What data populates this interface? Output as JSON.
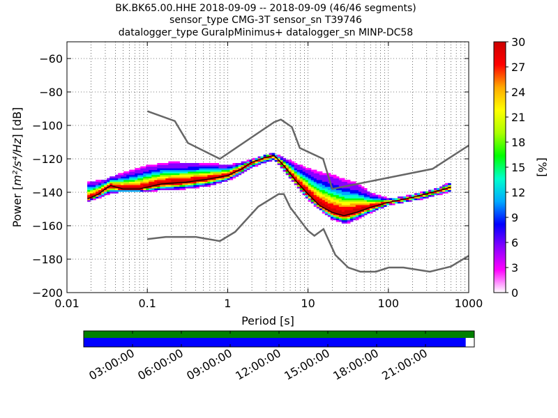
{
  "header": {
    "title_lines": [
      "BK.BK65.00.HHE   2018-09-09 -- 2018-09-09  (46/46 segments)",
      "sensor_type CMG-3T sensor_sn T39746",
      "datalogger_type GuralpMinimus+ datalogger_sn MINP-DC58"
    ]
  },
  "chart_data": {
    "type": "heatmap",
    "subtype": "probabilistic-power-spectral-density",
    "xlabel": "Period [s]",
    "ylabel": "Power [m²/s⁴/Hz] [dB]",
    "ylabel_parts": {
      "prefix": "Power [",
      "unit_tex": "m²/s⁴/Hz",
      "suffix": "] [dB]"
    },
    "x_scale": "log",
    "xlim": [
      0.01,
      1000
    ],
    "ylim": [
      -200,
      -50
    ],
    "x_ticks": [
      0.01,
      0.1,
      1,
      10,
      100,
      1000
    ],
    "x_tick_labels": [
      "0.01",
      "0.1",
      "1",
      "10",
      "100",
      "1000"
    ],
    "y_ticks": [
      -200,
      -180,
      -160,
      -140,
      -120,
      -100,
      -80,
      -60
    ],
    "y_tick_labels": [
      "−200",
      "−180",
      "−160",
      "−140",
      "−120",
      "−100",
      "−80",
      "−60"
    ],
    "grid": "dotted",
    "colorbar": {
      "label": "[%]",
      "range": [
        0,
        30
      ],
      "ticks": [
        0,
        3,
        6,
        9,
        12,
        15,
        18,
        21,
        24,
        27,
        30
      ],
      "tick_labels": [
        "0",
        "3",
        "6",
        "9",
        "12",
        "15",
        "18",
        "21",
        "24",
        "27",
        "30"
      ],
      "colormap": [
        "#ffffff",
        "#ff00ff",
        "#8800ff",
        "#0000ff",
        "#00aaff",
        "#00ffcc",
        "#00ff00",
        "#aaff00",
        "#ffff00",
        "#ffaa00",
        "#ff0000",
        "#cc0000"
      ]
    },
    "noise_models": {
      "color": "#666666",
      "high_noise_model": [
        [
          0.1,
          -91.5
        ],
        [
          0.22,
          -97.4
        ],
        [
          0.32,
          -110.5
        ],
        [
          0.8,
          -120
        ],
        [
          3.8,
          -98
        ],
        [
          4.6,
          -96.5
        ],
        [
          6.3,
          -101
        ],
        [
          7.9,
          -113.5
        ],
        [
          15.4,
          -120
        ],
        [
          20,
          -138
        ],
        [
          354.8,
          -126
        ],
        [
          1000,
          -112
        ]
      ],
      "low_noise_model": [
        [
          0.1,
          -168
        ],
        [
          0.17,
          -166.7
        ],
        [
          0.4,
          -166.7
        ],
        [
          0.8,
          -169.2
        ],
        [
          1.24,
          -163.7
        ],
        [
          2.4,
          -148.6
        ],
        [
          4.3,
          -141.1
        ],
        [
          5,
          -141.1
        ],
        [
          6,
          -149
        ],
        [
          10,
          -163
        ],
        [
          12,
          -166
        ],
        [
          15.6,
          -162
        ],
        [
          21.9,
          -177.5
        ],
        [
          31.6,
          -185
        ],
        [
          45,
          -187.5
        ],
        [
          70,
          -187.5
        ],
        [
          101,
          -185
        ],
        [
          154,
          -185
        ],
        [
          328,
          -187.5
        ],
        [
          600,
          -184.4
        ],
        [
          1000,
          -178
        ]
      ]
    },
    "mode_curve": [
      [
        0.018,
        -144
      ],
      [
        0.025,
        -141
      ],
      [
        0.03,
        -138
      ],
      [
        0.035,
        -136
      ],
      [
        0.05,
        -138
      ],
      [
        0.08,
        -138
      ],
      [
        0.15,
        -135
      ],
      [
        0.3,
        -134
      ],
      [
        0.6,
        -132
      ],
      [
        1,
        -130
      ],
      [
        1.5,
        -126
      ],
      [
        2,
        -122
      ],
      [
        3,
        -119
      ],
      [
        3.8,
        -118
      ],
      [
        5,
        -124
      ],
      [
        7,
        -133
      ],
      [
        10,
        -141
      ],
      [
        14,
        -148
      ],
      [
        20,
        -152
      ],
      [
        28,
        -154
      ],
      [
        40,
        -152
      ],
      [
        60,
        -149
      ],
      [
        100,
        -146
      ],
      [
        200,
        -143
      ],
      [
        350,
        -140
      ],
      [
        600,
        -137
      ]
    ],
    "spread_upper": [
      [
        0.03,
        -131
      ],
      [
        0.05,
        -126
      ],
      [
        0.1,
        -121
      ],
      [
        0.2,
        -119
      ],
      [
        0.5,
        -120
      ],
      [
        1,
        -122
      ],
      [
        2,
        -120
      ],
      [
        3.5,
        -116
      ],
      [
        5,
        -118
      ],
      [
        10,
        -122
      ],
      [
        20,
        -124
      ],
      [
        40,
        -130
      ],
      [
        60,
        -138
      ],
      [
        100,
        -143
      ],
      [
        300,
        -141
      ],
      [
        600,
        -133
      ]
    ],
    "spread_lower": [
      [
        0.02,
        -145
      ],
      [
        0.05,
        -140
      ],
      [
        0.1,
        -140
      ],
      [
        0.3,
        -139
      ],
      [
        0.6,
        -137
      ],
      [
        1,
        -134
      ],
      [
        2,
        -126
      ],
      [
        3.8,
        -121
      ],
      [
        6,
        -132
      ],
      [
        10,
        -145
      ],
      [
        20,
        -157
      ],
      [
        30,
        -160
      ],
      [
        50,
        -155
      ],
      [
        100,
        -148
      ],
      [
        300,
        -144
      ],
      [
        600,
        -140
      ]
    ]
  },
  "time_bar": {
    "fill_fraction": 0.978,
    "green_color": "#008000",
    "blue_color": "#0000ff",
    "tick_labels": [
      "03:00:00",
      "06:00:00",
      "09:00:00",
      "12:00:00",
      "15:00:00",
      "18:00:00",
      "21:00:00"
    ]
  }
}
